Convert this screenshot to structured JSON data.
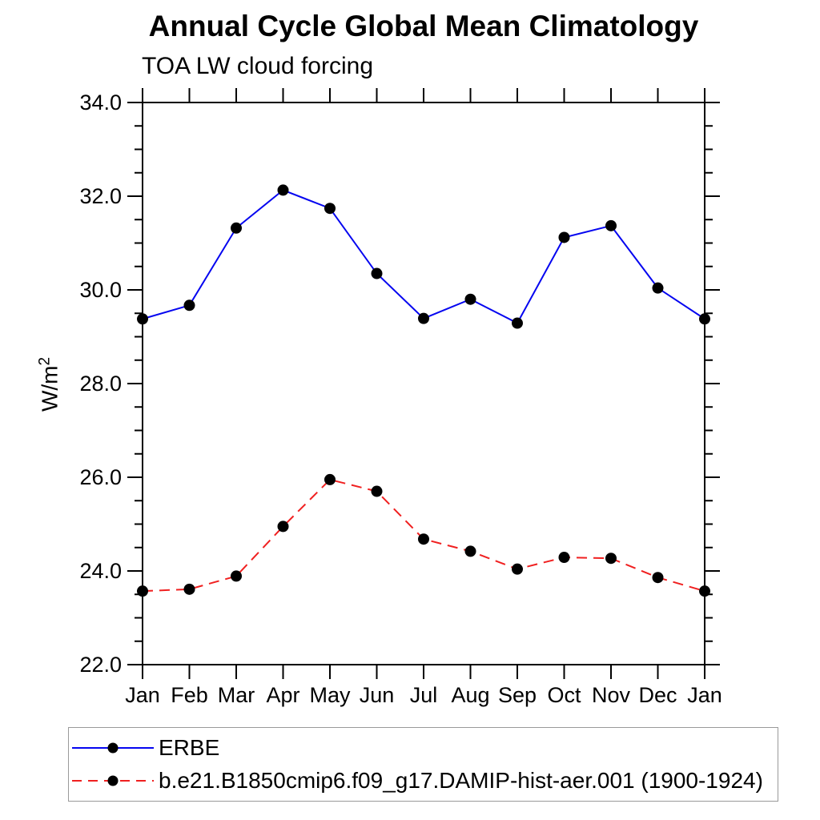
{
  "page": {
    "background": "#ffffff"
  },
  "chart": {
    "title": "Annual Cycle Global Mean Climatology",
    "subtitle": "TOA LW cloud forcing",
    "ylabel_base": "W/m",
    "ylabel_sup": "2"
  },
  "chart_data": {
    "type": "line",
    "title": "Annual Cycle Global Mean Climatology",
    "subtitle": "TOA LW cloud forcing",
    "ylabel": "W/m^2",
    "xlabel": "",
    "categories": [
      "Jan",
      "Feb",
      "Mar",
      "Apr",
      "May",
      "Jun",
      "Jul",
      "Aug",
      "Sep",
      "Oct",
      "Nov",
      "Dec",
      "Jan"
    ],
    "series": [
      {
        "name": "ERBE",
        "color": "#0505f0",
        "line_style": "solid",
        "marker": "filled-circle",
        "marker_color": "#000000",
        "values": [
          29.38,
          29.67,
          31.32,
          32.13,
          31.74,
          30.35,
          29.39,
          29.8,
          29.29,
          31.12,
          31.37,
          30.04,
          29.38
        ]
      },
      {
        "name": "b.e21.B1850cmip6.f09_g17.DAMIP-hist-aer.001 (1900-1924)",
        "color": "#f02020",
        "line_style": "dashed",
        "marker": "filled-circle",
        "marker_color": "#000000",
        "values": [
          23.57,
          23.61,
          23.89,
          24.95,
          25.95,
          25.7,
          24.68,
          24.42,
          24.04,
          24.29,
          24.27,
          23.86,
          23.57
        ]
      }
    ],
    "ylim": [
      22.0,
      34.0
    ],
    "ytick_step": 2.0,
    "yminor_step": 0.5,
    "ytick_labels": [
      "22.0",
      "24.0",
      "26.0",
      "28.0",
      "30.0",
      "32.0",
      "34.0"
    ],
    "grid": false,
    "frame": "boxed-with-outward-ticks",
    "legend_position": "bottom-left"
  }
}
